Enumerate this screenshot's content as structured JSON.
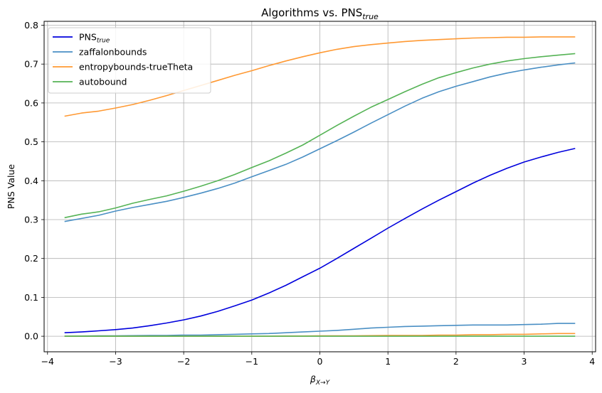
{
  "chart_data": {
    "type": "line",
    "title": "Algorithms vs. PNS",
    "title_sub": "true",
    "xlabel_base": "β",
    "xlabel_sub": "X→Y",
    "ylabel": "PNS Value",
    "xlim": [
      -4.05,
      4.05
    ],
    "ylim": [
      -0.04,
      0.81
    ],
    "xticks": [
      -4,
      -3,
      -2,
      -1,
      0,
      1,
      2,
      3,
      4
    ],
    "xtick_labels": [
      "−4",
      "−3",
      "−2",
      "−1",
      "0",
      "1",
      "2",
      "3",
      "4"
    ],
    "yticks": [
      0.0,
      0.1,
      0.2,
      0.3,
      0.4,
      0.5,
      0.6,
      0.7,
      0.8
    ],
    "ytick_labels": [
      "0.0",
      "0.1",
      "0.2",
      "0.3",
      "0.4",
      "0.5",
      "0.6",
      "0.7",
      "0.8"
    ],
    "grid": true,
    "legend_position": "top-left",
    "x": [
      -3.75,
      -3.5,
      -3.25,
      -3.0,
      -2.75,
      -2.5,
      -2.25,
      -2.0,
      -1.75,
      -1.5,
      -1.25,
      -1.0,
      -0.75,
      -0.5,
      -0.25,
      0.0,
      0.25,
      0.5,
      0.75,
      1.0,
      1.25,
      1.5,
      1.75,
      2.0,
      2.25,
      2.5,
      2.75,
      3.0,
      3.25,
      3.5,
      3.75
    ],
    "series": [
      {
        "name": "PNS",
        "name_sub": "true",
        "color": "#0000dd",
        "values": [
          0.009,
          0.011,
          0.014,
          0.017,
          0.021,
          0.027,
          0.034,
          0.042,
          0.052,
          0.064,
          0.078,
          0.093,
          0.111,
          0.131,
          0.153,
          0.175,
          0.2,
          0.226,
          0.252,
          0.278,
          0.303,
          0.327,
          0.35,
          0.372,
          0.394,
          0.414,
          0.432,
          0.448,
          0.461,
          0.473,
          0.483
        ]
      },
      {
        "name": "zaffalonbounds",
        "color": "#4a8fc4",
        "values": [
          0.295,
          0.303,
          0.311,
          0.322,
          0.331,
          0.339,
          0.347,
          0.357,
          0.368,
          0.38,
          0.394,
          0.41,
          0.426,
          0.442,
          0.461,
          0.482,
          0.503,
          0.525,
          0.548,
          0.57,
          0.592,
          0.612,
          0.629,
          0.643,
          0.655,
          0.667,
          0.677,
          0.685,
          0.692,
          0.698,
          0.703
        ]
      },
      {
        "name": "zaffalonbounds (lower)",
        "color": "#4a8fc4",
        "legend": false,
        "values": [
          0.0,
          0.0005,
          0.001,
          0.001,
          0.0015,
          0.002,
          0.002,
          0.003,
          0.003,
          0.004,
          0.005,
          0.006,
          0.007,
          0.009,
          0.011,
          0.013,
          0.015,
          0.018,
          0.021,
          0.023,
          0.025,
          0.026,
          0.027,
          0.028,
          0.029,
          0.029,
          0.029,
          0.03,
          0.031,
          0.033,
          0.033
        ]
      },
      {
        "name": "entropybounds-trueTheta",
        "color": "#ff9933",
        "values": [
          0.566,
          0.574,
          0.579,
          0.587,
          0.596,
          0.607,
          0.619,
          0.632,
          0.645,
          0.658,
          0.671,
          0.683,
          0.696,
          0.708,
          0.719,
          0.729,
          0.738,
          0.745,
          0.75,
          0.754,
          0.758,
          0.761,
          0.763,
          0.765,
          0.767,
          0.768,
          0.769,
          0.769,
          0.77,
          0.77,
          0.77
        ]
      },
      {
        "name": "entropybounds-trueTheta (lower)",
        "color": "#ff9933",
        "legend": false,
        "values": [
          0.0,
          0.0,
          0.0,
          0.0,
          0.0,
          0.0,
          0.0,
          0.0,
          0.0,
          0.0,
          0.0,
          0.0,
          0.0,
          0.0005,
          0.0005,
          0.001,
          0.001,
          0.001,
          0.0015,
          0.002,
          0.002,
          0.002,
          0.003,
          0.003,
          0.004,
          0.004,
          0.005,
          0.005,
          0.006,
          0.007,
          0.007
        ]
      },
      {
        "name": "autobound",
        "color": "#55b355",
        "values": [
          0.305,
          0.314,
          0.32,
          0.33,
          0.342,
          0.352,
          0.361,
          0.373,
          0.386,
          0.4,
          0.416,
          0.434,
          0.451,
          0.471,
          0.492,
          0.517,
          0.542,
          0.566,
          0.589,
          0.609,
          0.629,
          0.648,
          0.665,
          0.678,
          0.69,
          0.7,
          0.708,
          0.714,
          0.719,
          0.723,
          0.727
        ]
      },
      {
        "name": "autobound (lower)",
        "color": "#55b355",
        "legend": false,
        "values": [
          0.0,
          0.0,
          0.0,
          0.0,
          0.0,
          0.0,
          0.0,
          0.0,
          0.0,
          0.0,
          0.0,
          0.0,
          0.0,
          0.0,
          0.0,
          0.0,
          0.0,
          0.0,
          0.0,
          0.0,
          0.0,
          0.0,
          0.0,
          0.0,
          0.0,
          0.0,
          0.0,
          0.0,
          0.0,
          0.0,
          0.0
        ]
      }
    ]
  }
}
